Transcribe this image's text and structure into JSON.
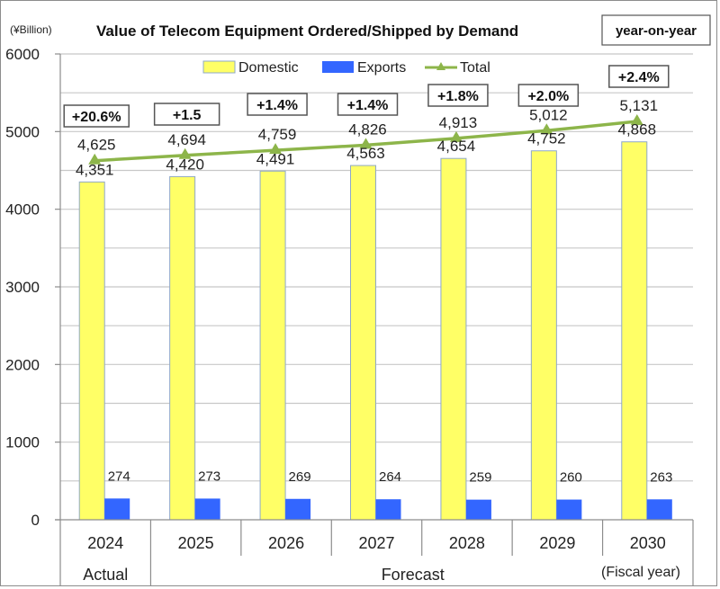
{
  "chart_data": {
    "type": "bar",
    "title": "Value of  Telecom Equipment Ordered/Shipped by Demand",
    "unit_label": "(¥Billion)",
    "yoy_label": "year-on-year",
    "xlabel": "(Fiscal year)",
    "ylabel": "",
    "ylim": [
      0,
      6000
    ],
    "y_ticks": [
      0,
      1000,
      2000,
      3000,
      4000,
      5000,
      6000
    ],
    "grid": true,
    "legend_position": "top",
    "categories": [
      "2024",
      "2025",
      "2026",
      "2027",
      "2028",
      "2029",
      "2030"
    ],
    "category_groups": [
      {
        "label": "Actual",
        "span": 1
      },
      {
        "label": "Forecast",
        "span": 6
      }
    ],
    "series": [
      {
        "name": "Domestic",
        "type": "bar",
        "color": "#ffff66",
        "values": [
          4351,
          4420,
          4491,
          4563,
          4654,
          4752,
          4868
        ],
        "labels": [
          "4,351",
          "4,420",
          "4,491",
          "4,563",
          "4,654",
          "4,752",
          "4,868"
        ]
      },
      {
        "name": "Exports",
        "type": "bar",
        "color": "#3366ff",
        "values": [
          274,
          273,
          269,
          264,
          259,
          260,
          263
        ],
        "labels": [
          "274",
          "273",
          "269",
          "264",
          "259",
          "260",
          "263"
        ]
      },
      {
        "name": "Total",
        "type": "line",
        "color": "#8db54a",
        "values": [
          4625,
          4694,
          4759,
          4826,
          4913,
          5012,
          5131
        ],
        "labels": [
          "4,625",
          "4,694",
          "4,759",
          "4,826",
          "4,913",
          "5,012",
          "5,131"
        ]
      }
    ],
    "yoy_changes": [
      "+20.6%",
      "+1.5",
      "+1.4%",
      "+1.4%",
      "+1.8%",
      "+2.0%",
      "+2.4%"
    ]
  }
}
